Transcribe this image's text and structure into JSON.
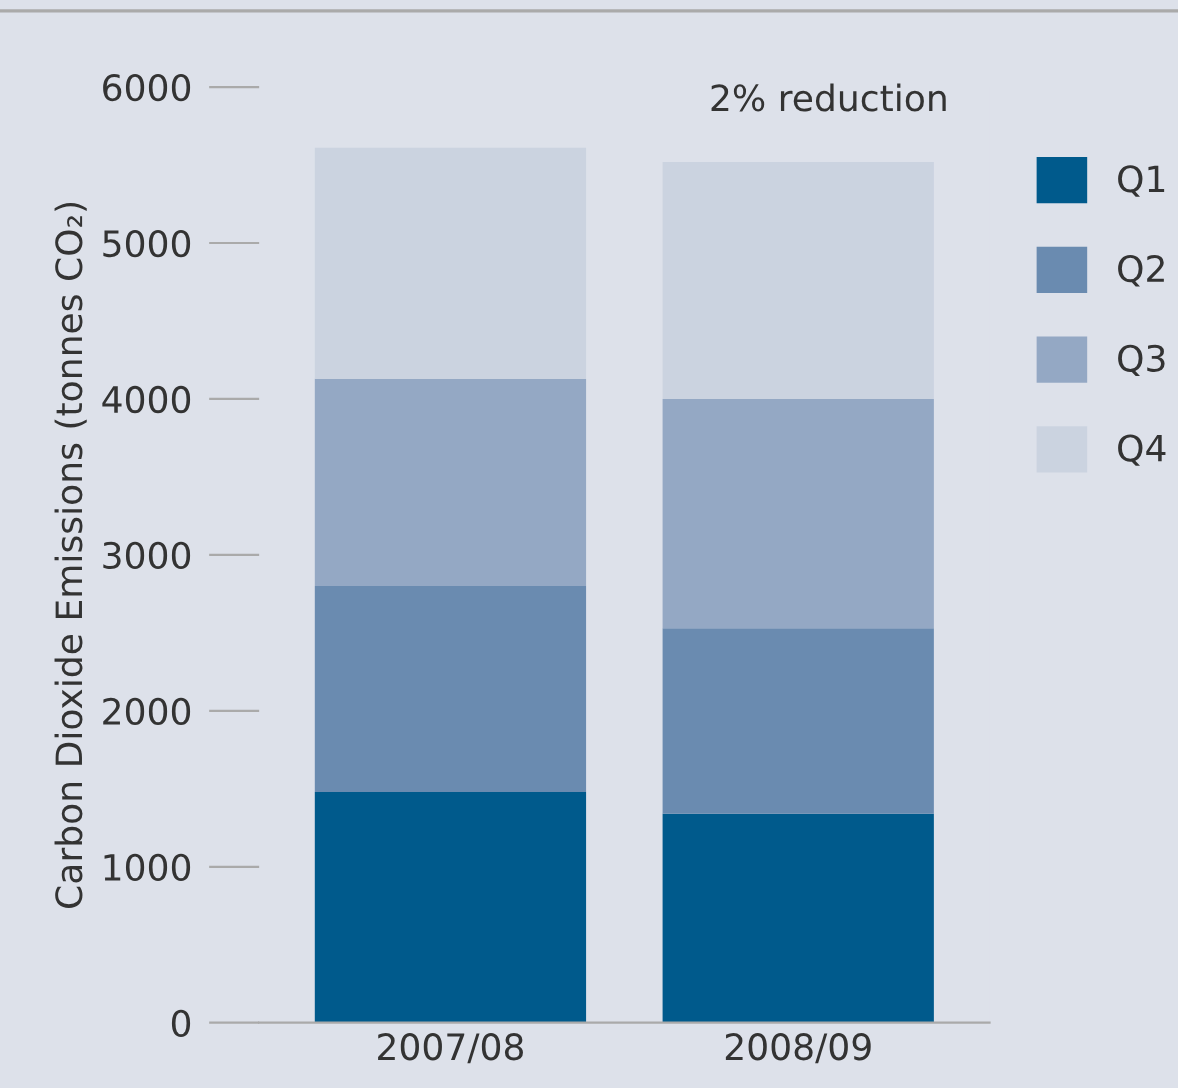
{
  "chart_data": {
    "type": "bar",
    "stacked": true,
    "categories": [
      "2007/08",
      "2008/09"
    ],
    "series": [
      {
        "name": "Q1",
        "color": "#005a8c",
        "values": [
          1480,
          1340
        ]
      },
      {
        "name": "Q2",
        "color": "#6a8bb0",
        "values": [
          1320,
          1190
        ]
      },
      {
        "name": "Q3",
        "color": "#94a8c4",
        "values": [
          1330,
          1470
        ]
      },
      {
        "name": "Q4",
        "color": "#cbd3e0",
        "values": [
          1480,
          1520
        ]
      }
    ],
    "ylabel": "Carbon Dioxide Emissions (tonnes CO₂)",
    "ylim": [
      0,
      6000
    ],
    "yticks": [
      0,
      1000,
      2000,
      3000,
      4000,
      5000,
      6000
    ],
    "annotations": [
      "2% reduction"
    ],
    "legend": "top right",
    "grid": false
  }
}
